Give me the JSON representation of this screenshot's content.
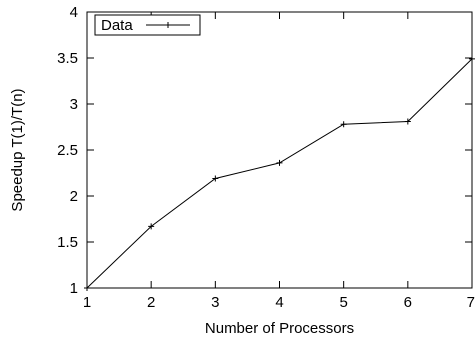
{
  "chart_data": {
    "type": "line",
    "title": "",
    "xlabel": "Number of Processors",
    "ylabel": "Speedup T(1)/T(n)",
    "xlim": [
      1,
      7
    ],
    "ylim": [
      1,
      4
    ],
    "xticks": [
      "1",
      "2",
      "3",
      "4",
      "5",
      "6",
      "7"
    ],
    "yticks": [
      "1",
      "1.5",
      "2",
      "2.5",
      "3",
      "3.5",
      "4"
    ],
    "grid": false,
    "legend_position": "top-left",
    "series": [
      {
        "name": "Data",
        "marker": "plus",
        "color": "#000000",
        "x": [
          1,
          2,
          3,
          4,
          5,
          6,
          7
        ],
        "y": [
          1.0,
          1.67,
          2.19,
          2.36,
          2.78,
          2.81,
          3.49
        ]
      }
    ]
  }
}
